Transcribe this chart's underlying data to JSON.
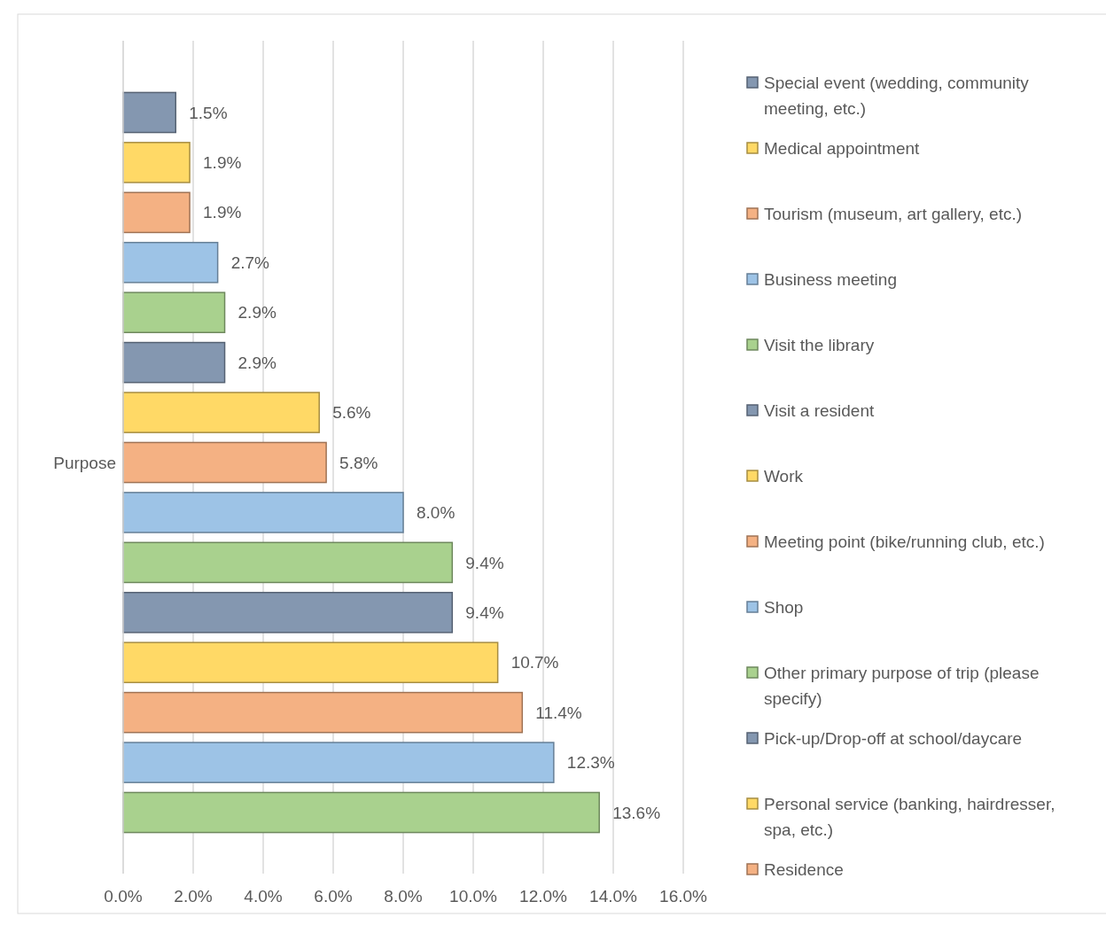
{
  "chart_data": {
    "type": "bar",
    "orientation": "horizontal",
    "categories": [
      "Purpose"
    ],
    "xlim": [
      0,
      16
    ],
    "xticks": [
      {
        "value": 0,
        "label": "0.0%"
      },
      {
        "value": 2,
        "label": "2.0%"
      },
      {
        "value": 4,
        "label": "4.0%"
      },
      {
        "value": 6,
        "label": "6.0%"
      },
      {
        "value": 8,
        "label": "8.0%"
      },
      {
        "value": 10,
        "label": "10.0%"
      },
      {
        "value": 12,
        "label": "12.0%"
      },
      {
        "value": 14,
        "label": "14.0%"
      },
      {
        "value": 16,
        "label": "16.0%"
      }
    ],
    "grid": "x",
    "legend": "right",
    "series": [
      {
        "name": "Special event (wedding, community meeting, etc.)",
        "color": "#8497b0",
        "values": [
          1.5
        ],
        "value_labels": [
          "1.5%"
        ]
      },
      {
        "name": "Medical appointment",
        "color": "#ffd966",
        "values": [
          1.9
        ],
        "value_labels": [
          "1.9%"
        ]
      },
      {
        "name": "Tourism (museum, art gallery, etc.)",
        "color": "#f4b183",
        "values": [
          1.9
        ],
        "value_labels": [
          "1.9%"
        ]
      },
      {
        "name": "Business meeting",
        "color": "#9dc3e6",
        "values": [
          2.7
        ],
        "value_labels": [
          "2.7%"
        ]
      },
      {
        "name": "Visit the library",
        "color": "#a9d18e",
        "values": [
          2.9
        ],
        "value_labels": [
          "2.9%"
        ]
      },
      {
        "name": "Visit a resident",
        "color": "#8497b0",
        "values": [
          2.9
        ],
        "value_labels": [
          "2.9%"
        ]
      },
      {
        "name": "Work",
        "color": "#ffd966",
        "values": [
          5.6
        ],
        "value_labels": [
          "5.6%"
        ]
      },
      {
        "name": "Meeting point (bike/running club, etc.)",
        "color": "#f4b183",
        "values": [
          5.8
        ],
        "value_labels": [
          "5.8%"
        ]
      },
      {
        "name": "Shop",
        "color": "#9dc3e6",
        "values": [
          8.0
        ],
        "value_labels": [
          "8.0%"
        ]
      },
      {
        "name": "Other primary purpose of trip (please specify)",
        "color": "#a9d18e",
        "values": [
          9.4
        ],
        "value_labels": [
          "9.4%"
        ]
      },
      {
        "name": "Pick-up/Drop-off at school/daycare",
        "color": "#8497b0",
        "values": [
          9.4
        ],
        "value_labels": [
          "9.4%"
        ]
      },
      {
        "name": "Personal service (banking, hairdresser, spa, etc.)",
        "color": "#ffd966",
        "values": [
          10.7
        ],
        "value_labels": [
          "10.7%"
        ]
      },
      {
        "name": "Residence",
        "color": "#f4b183",
        "values": [
          11.4
        ],
        "value_labels": [
          "11.4%"
        ]
      },
      {
        "color": "#9dc3e6",
        "values": [
          12.3
        ],
        "value_labels": [
          "12.3%"
        ]
      },
      {
        "color": "#a9d18e",
        "values": [
          13.6
        ],
        "value_labels": [
          "13.6%"
        ]
      }
    ]
  }
}
